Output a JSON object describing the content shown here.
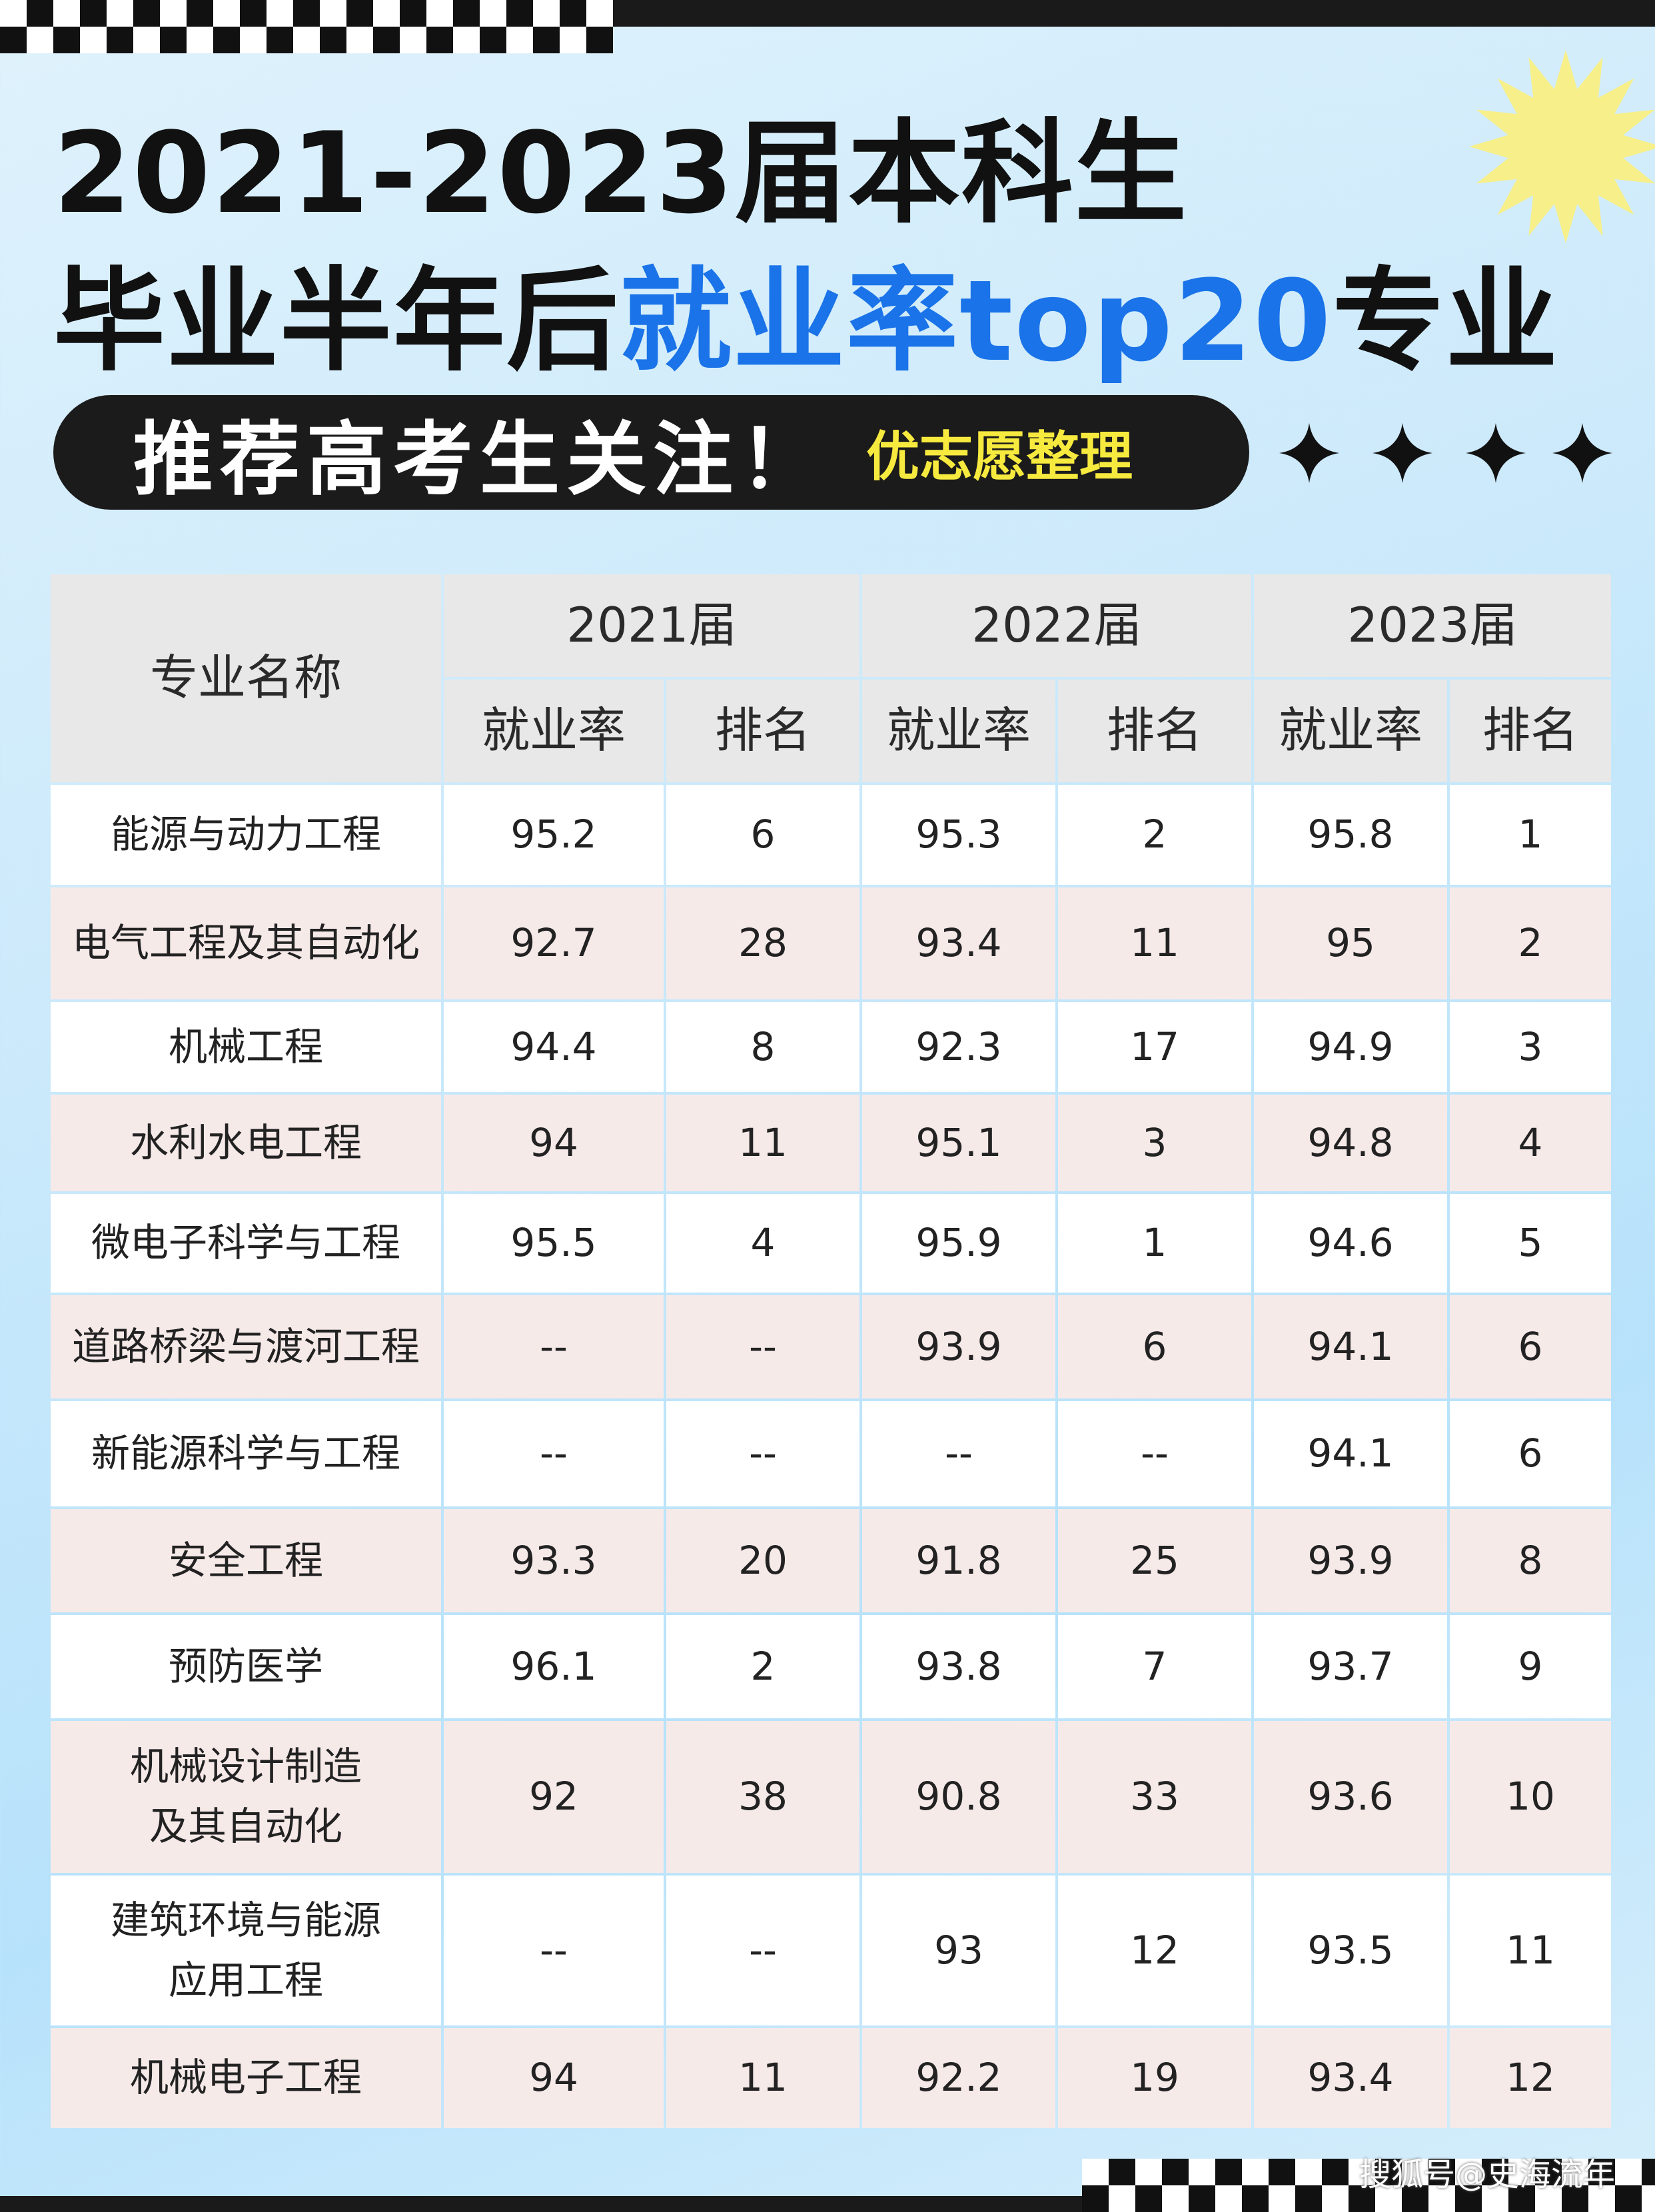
{
  "header": {
    "title_line1": "2021-2023届本科生",
    "title_line2_prefix": "毕业半年后",
    "title_line2_highlight": "就业率top20",
    "title_line2_suffix": "专业",
    "banner_main": "推荐高考生关注！",
    "banner_sub": "优志愿整理"
  },
  "colors": {
    "highlight": "#1a73e8",
    "banner_bg": "#1b1b1b",
    "banner_sub": "#f7ea3f",
    "star": "#f7f08a"
  },
  "table": {
    "major_header": "专业名称",
    "years": [
      "2021届",
      "2022届",
      "2023届"
    ],
    "sub_headers": [
      "就业率",
      "排名",
      "就业率",
      "排名",
      "就业率",
      "排名"
    ],
    "rows": [
      {
        "name": [
          "能源与动力工程"
        ],
        "values": [
          "95.2",
          "6",
          "95.3",
          "2",
          "95.8",
          "1"
        ]
      },
      {
        "name": [
          "电气工程及其自动化"
        ],
        "values": [
          "92.7",
          "28",
          "93.4",
          "11",
          "95",
          "2"
        ]
      },
      {
        "name": [
          "机械工程"
        ],
        "values": [
          "94.4",
          "8",
          "92.3",
          "17",
          "94.9",
          "3"
        ]
      },
      {
        "name": [
          "水利水电工程"
        ],
        "values": [
          "94",
          "11",
          "95.1",
          "3",
          "94.8",
          "4"
        ]
      },
      {
        "name": [
          "微电子科学与工程"
        ],
        "values": [
          "95.5",
          "4",
          "95.9",
          "1",
          "94.6",
          "5"
        ]
      },
      {
        "name": [
          "道路桥梁与渡河工程"
        ],
        "values": [
          "--",
          "--",
          "93.9",
          "6",
          "94.1",
          "6"
        ]
      },
      {
        "name": [
          "新能源科学与工程"
        ],
        "values": [
          "--",
          "--",
          "--",
          "--",
          "94.1",
          "6"
        ]
      },
      {
        "name": [
          "安全工程"
        ],
        "values": [
          "93.3",
          "20",
          "91.8",
          "25",
          "93.9",
          "8"
        ]
      },
      {
        "name": [
          "预防医学"
        ],
        "values": [
          "96.1",
          "2",
          "93.8",
          "7",
          "93.7",
          "9"
        ]
      },
      {
        "name": [
          "机械设计制造",
          "及其自动化"
        ],
        "values": [
          "92",
          "38",
          "90.8",
          "33",
          "93.6",
          "10"
        ]
      },
      {
        "name": [
          "建筑环境与能源",
          "应用工程"
        ],
        "values": [
          "--",
          "--",
          "93",
          "12",
          "93.5",
          "11"
        ]
      },
      {
        "name": [
          "机械电子工程"
        ],
        "values": [
          "94",
          "11",
          "92.2",
          "19",
          "93.4",
          "12"
        ]
      }
    ]
  },
  "watermark": "搜狐号@史海流年"
}
